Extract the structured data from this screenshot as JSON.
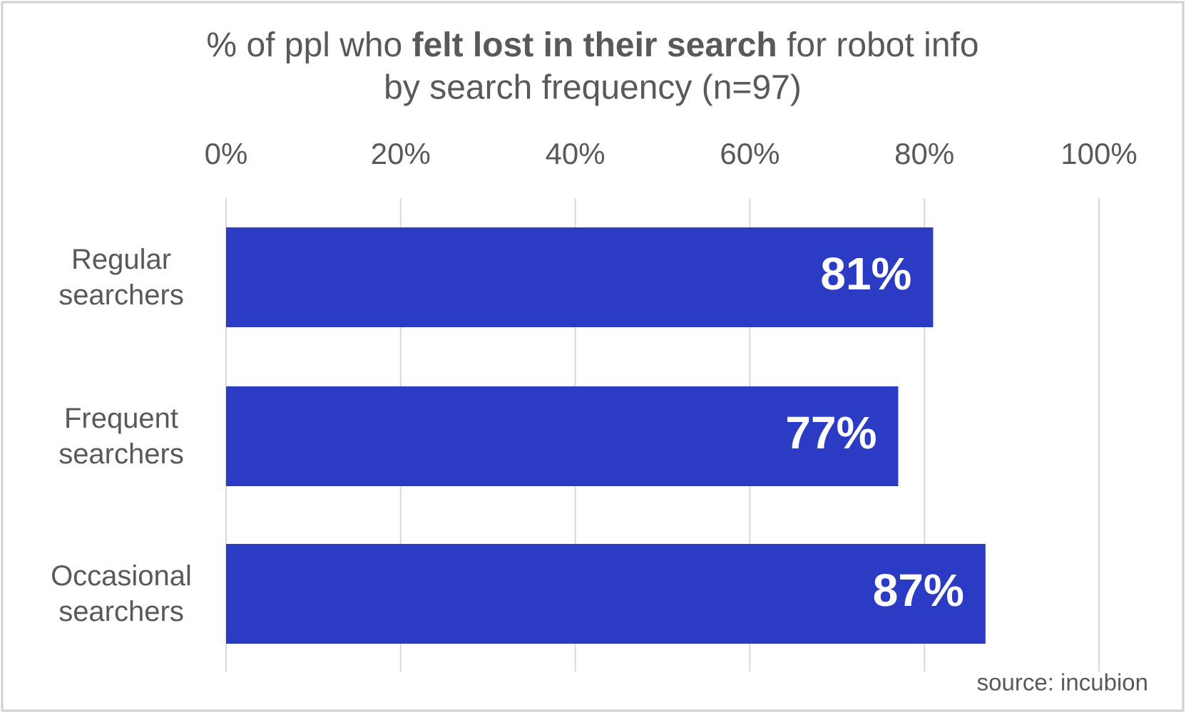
{
  "chart_data": {
    "type": "bar",
    "orientation": "horizontal",
    "title_parts": [
      "% of ppl who ",
      "felt lost in their search",
      " for robot info"
    ],
    "subtitle": "by search frequency (n=97)",
    "categories": [
      "Regular searchers",
      "Frequent searchers",
      "Occasional searchers"
    ],
    "values": [
      81,
      77,
      87
    ],
    "value_labels": [
      "81%",
      "77%",
      "87%"
    ],
    "color": "#2b3bc4",
    "xlim": [
      0,
      100
    ],
    "xticks": [
      {
        "value": 0,
        "label": "0%"
      },
      {
        "value": 20,
        "label": "20%"
      },
      {
        "value": 40,
        "label": "40%"
      },
      {
        "value": 60,
        "label": "60%"
      },
      {
        "value": 80,
        "label": "80%"
      },
      {
        "value": 100,
        "label": "100%"
      }
    ],
    "grid": true,
    "source": "source: incubion"
  }
}
